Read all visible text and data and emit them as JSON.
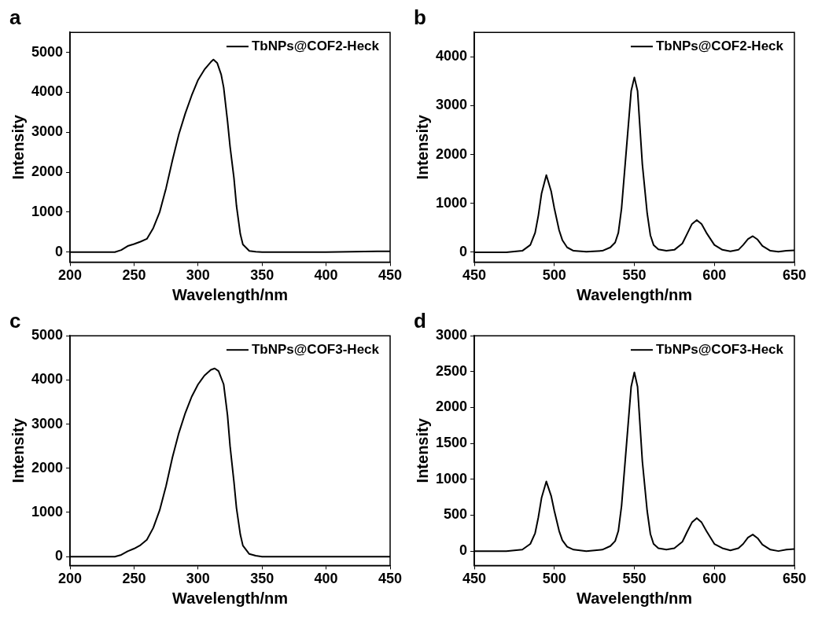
{
  "chart_data": [
    {
      "type": "line",
      "title": "a",
      "xlabel": "Wavelength/nm",
      "ylabel": "Intensity",
      "legend": "top right",
      "xlim": [
        200,
        450
      ],
      "xticks": [
        200,
        250,
        300,
        350,
        400,
        450
      ],
      "ylim": [
        -250,
        5500
      ],
      "yticks": [
        0,
        1000,
        2000,
        3000,
        4000,
        5000
      ],
      "x": [
        200,
        220,
        235,
        240,
        245,
        250,
        255,
        260,
        265,
        270,
        275,
        280,
        285,
        290,
        295,
        300,
        305,
        310,
        312,
        315,
        318,
        320,
        323,
        325,
        328,
        330,
        333,
        335,
        340,
        345,
        350,
        400,
        440,
        450
      ],
      "series": [
        {
          "name": "TbNPs@COF2-Heck",
          "color": "#000000",
          "values": [
            0,
            0,
            0,
            50,
            150,
            200,
            260,
            330,
            600,
            1000,
            1600,
            2300,
            2950,
            3470,
            3920,
            4310,
            4570,
            4760,
            4820,
            4730,
            4450,
            4120,
            3280,
            2640,
            1860,
            1160,
            450,
            190,
            30,
            10,
            0,
            0,
            20,
            20
          ]
        }
      ]
    },
    {
      "type": "line",
      "title": "b",
      "xlabel": "Wavelength/nm",
      "ylabel": "Intensity",
      "legend": "top right",
      "xlim": [
        450,
        650
      ],
      "xticks": [
        450,
        500,
        550,
        600,
        650
      ],
      "ylim": [
        -200,
        4500
      ],
      "yticks": [
        0,
        1000,
        2000,
        3000,
        4000
      ],
      "x": [
        450,
        460,
        470,
        480,
        485,
        488,
        490,
        492,
        495,
        498,
        500,
        503,
        505,
        508,
        512,
        520,
        530,
        535,
        538,
        540,
        542,
        545,
        548,
        550,
        552,
        555,
        558,
        560,
        562,
        565,
        570,
        575,
        580,
        583,
        586,
        589,
        592,
        595,
        600,
        605,
        610,
        615,
        618,
        621,
        624,
        627,
        630,
        635,
        640,
        645,
        650
      ],
      "series": [
        {
          "name": "TbNPs@COF2-Heck",
          "color": "#000000",
          "values": [
            0,
            0,
            0,
            30,
            150,
            400,
            750,
            1200,
            1580,
            1250,
            900,
            450,
            250,
            100,
            30,
            10,
            30,
            100,
            200,
            400,
            900,
            2100,
            3300,
            3580,
            3300,
            1800,
            800,
            350,
            150,
            60,
            30,
            50,
            180,
            380,
            580,
            660,
            580,
            400,
            150,
            50,
            20,
            50,
            150,
            270,
            330,
            260,
            130,
            30,
            10,
            30,
            40
          ]
        }
      ]
    },
    {
      "type": "line",
      "title": "c",
      "xlabel": "Wavelength/nm",
      "ylabel": "Intensity",
      "legend": "top right",
      "xlim": [
        200,
        450
      ],
      "xticks": [
        200,
        250,
        300,
        350,
        400,
        450
      ],
      "ylim": [
        -200,
        5000
      ],
      "yticks": [
        0,
        1000,
        2000,
        3000,
        4000,
        5000
      ],
      "x": [
        200,
        220,
        235,
        240,
        245,
        250,
        255,
        260,
        265,
        270,
        275,
        280,
        285,
        290,
        295,
        300,
        305,
        310,
        313,
        316,
        320,
        323,
        325,
        328,
        330,
        333,
        335,
        340,
        345,
        350,
        400,
        450
      ],
      "series": [
        {
          "name": "TbNPs@COF3-Heck",
          "color": "#000000",
          "values": [
            0,
            0,
            0,
            40,
            120,
            180,
            260,
            380,
            650,
            1050,
            1600,
            2250,
            2800,
            3250,
            3620,
            3900,
            4100,
            4230,
            4260,
            4200,
            3900,
            3200,
            2500,
            1700,
            1100,
            500,
            250,
            60,
            20,
            0,
            0,
            0
          ]
        }
      ]
    },
    {
      "type": "line",
      "title": "d",
      "xlabel": "Wavelength/nm",
      "ylabel": "Intensity",
      "legend": "top right",
      "xlim": [
        450,
        650
      ],
      "xticks": [
        450,
        500,
        550,
        600,
        650
      ],
      "ylim": [
        -200,
        3000
      ],
      "yticks": [
        0,
        500,
        1000,
        1500,
        2000,
        2500,
        3000
      ],
      "x": [
        450,
        460,
        470,
        480,
        485,
        488,
        490,
        492,
        495,
        498,
        500,
        503,
        505,
        508,
        512,
        520,
        530,
        535,
        538,
        540,
        542,
        545,
        548,
        550,
        552,
        555,
        558,
        560,
        562,
        565,
        570,
        575,
        580,
        583,
        586,
        589,
        592,
        595,
        600,
        605,
        610,
        615,
        618,
        621,
        624,
        627,
        630,
        635,
        640,
        645,
        650
      ],
      "series": [
        {
          "name": "TbNPs@COF3-Heck",
          "color": "#000000",
          "values": [
            0,
            0,
            0,
            20,
            100,
            250,
            470,
            740,
            970,
            770,
            560,
            280,
            150,
            60,
            20,
            0,
            20,
            70,
            140,
            280,
            630,
            1460,
            2290,
            2490,
            2290,
            1250,
            560,
            240,
            100,
            40,
            20,
            40,
            130,
            270,
            400,
            460,
            400,
            280,
            100,
            40,
            10,
            40,
            100,
            190,
            230,
            180,
            90,
            20,
            0,
            20,
            30
          ]
        }
      ]
    }
  ]
}
